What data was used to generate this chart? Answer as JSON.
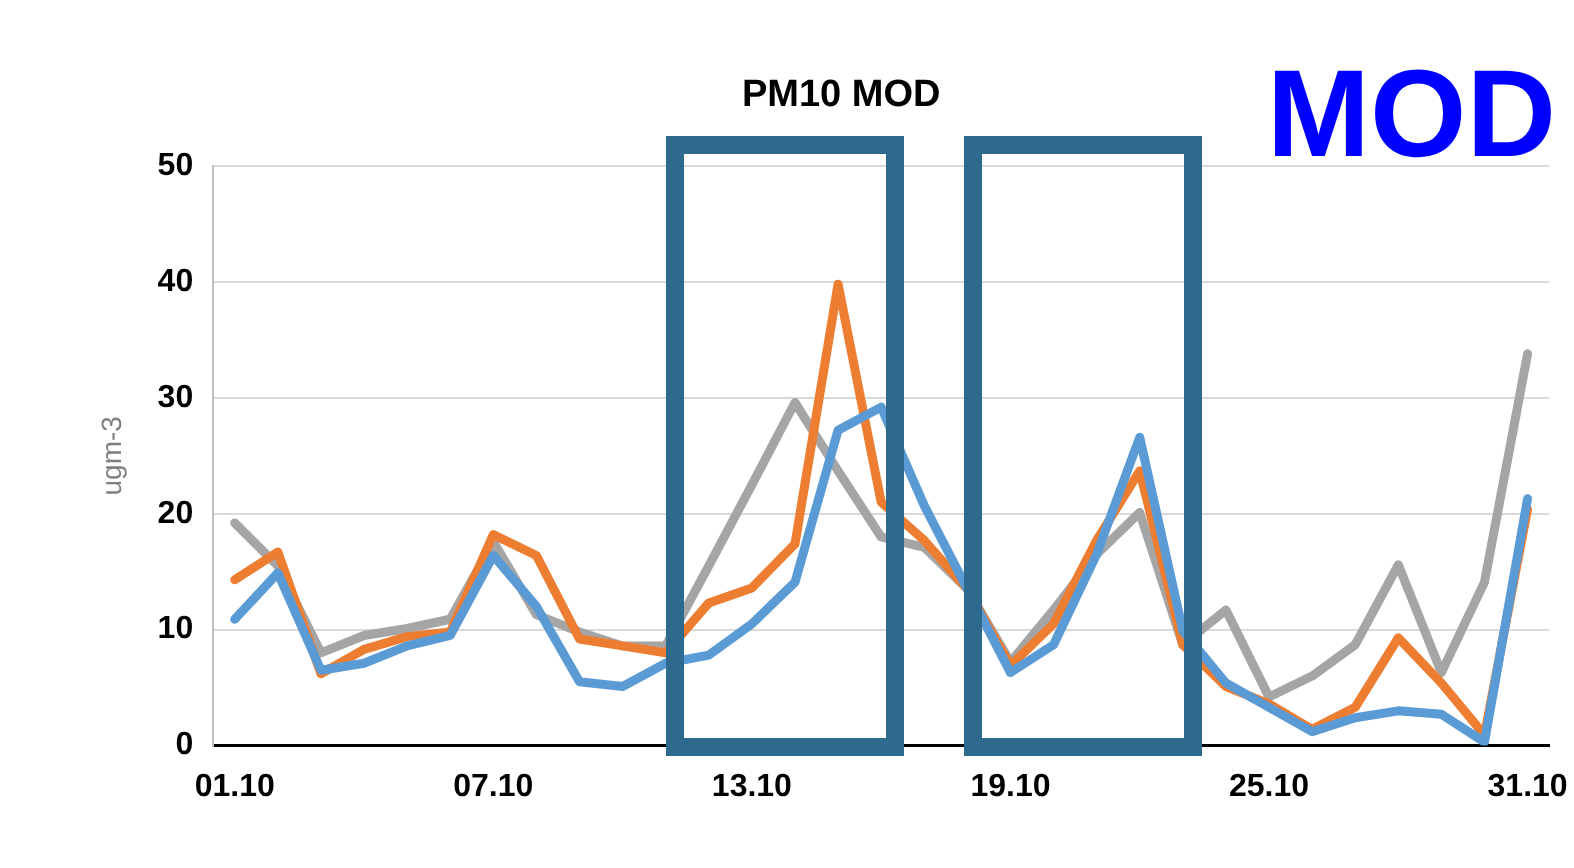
{
  "chart_data": {
    "type": "line",
    "title": "PM10 MOD",
    "ylabel": "ugm-3",
    "annotations": [
      "MOD"
    ],
    "categories": [
      "01.10",
      null,
      null,
      null,
      null,
      null,
      "07.10",
      null,
      null,
      null,
      null,
      null,
      "13.10",
      null,
      null,
      null,
      null,
      null,
      "19.10",
      null,
      null,
      null,
      null,
      null,
      "25.10",
      null,
      null,
      null,
      null,
      null,
      "31.10"
    ],
    "series": [
      {
        "color": "#5b9bd5",
        "values": [
          10.9,
          14.9,
          6.5,
          7.1,
          8.6,
          9.5,
          16.4,
          12,
          5.5,
          5.1,
          7.1,
          7.8,
          10.5,
          14.1,
          27.2,
          29.2,
          20.7,
          13.5,
          6.3,
          8.7,
          16.5,
          26.6,
          9.9,
          5.4,
          3.3,
          1.2,
          2.4,
          3.0,
          2.7,
          0.3,
          21.3
        ]
      },
      {
        "color": "#ed7d31",
        "values": [
          14.3,
          16.7,
          6.2,
          8.3,
          9.4,
          9.8,
          18.2,
          16.4,
          9.2,
          8.6,
          8.0,
          12.3,
          13.6,
          17.4,
          39.8,
          21,
          17.7,
          13.5,
          6.9,
          10.5,
          17.7,
          23.7,
          8.7,
          5.1,
          3.6,
          1.4,
          3.3,
          9.3,
          5.4,
          0.9,
          20.4
        ]
      },
      {
        "color": "#a5a5a5",
        "values": [
          19.2,
          15.5,
          8.0,
          9.5,
          10.1,
          10.9,
          17.6,
          11.3,
          9.8,
          8.6,
          8.6,
          15.5,
          22.5,
          29.6,
          23.7,
          18,
          17.1,
          13.5,
          7.2,
          11.7,
          16.5,
          20.1,
          8.7,
          11.7,
          4.2,
          6.0,
          8.7,
          15.6,
          6.3,
          14.1,
          33.8
        ]
      }
    ],
    "ylim": [
      0,
      50
    ],
    "yticks": [
      0,
      10,
      20,
      30,
      40,
      50
    ],
    "grid": "y",
    "legend": false,
    "marker": "none",
    "line_style": "solid"
  }
}
